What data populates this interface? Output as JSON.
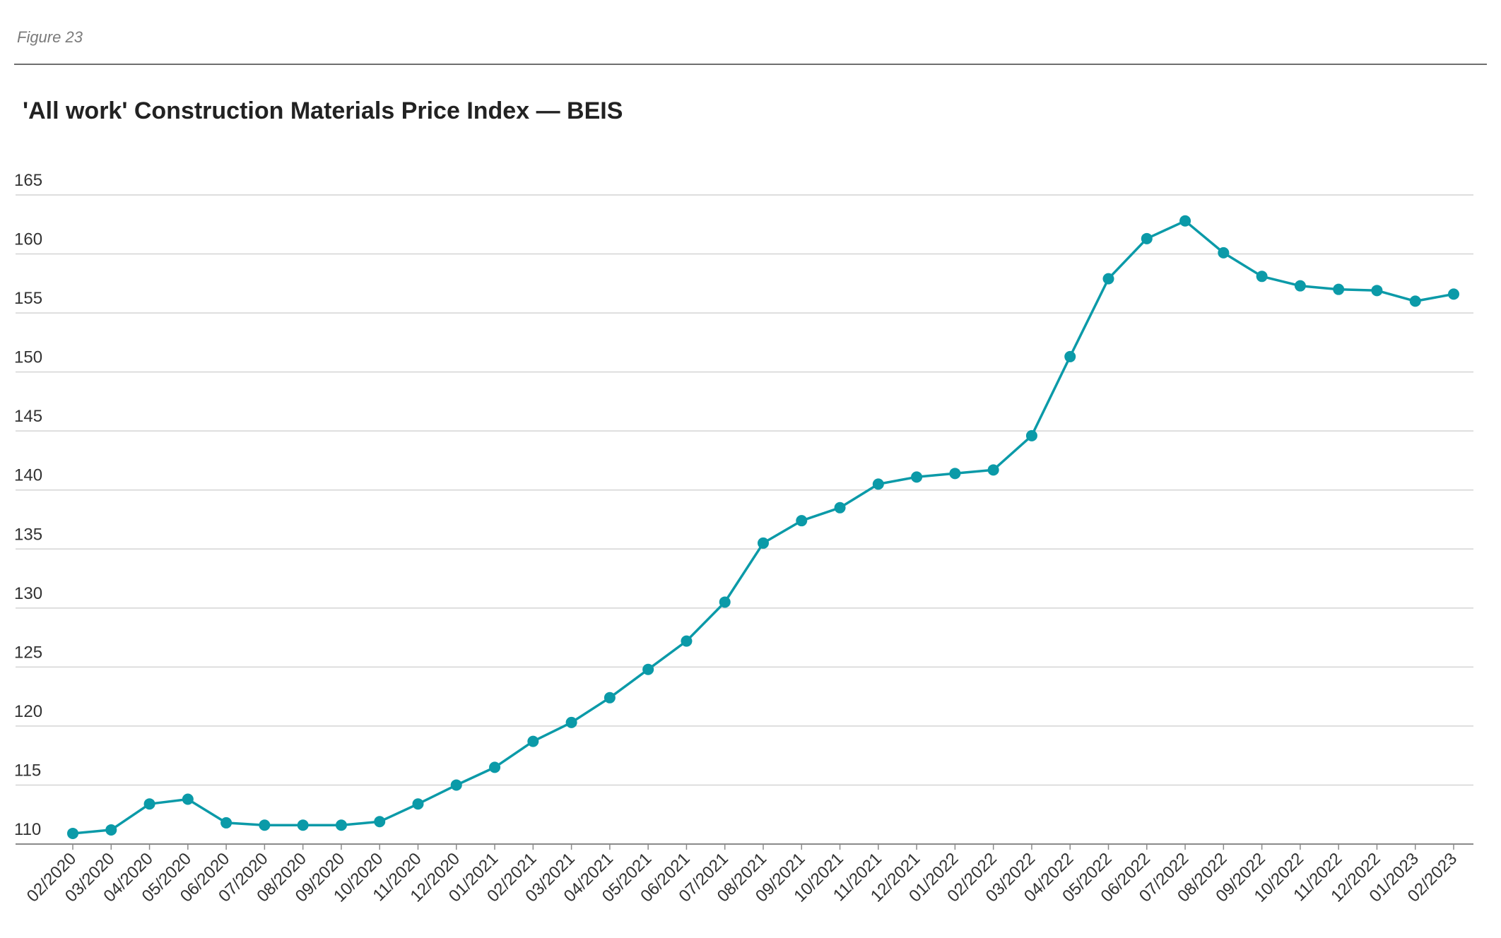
{
  "figure_label": "Figure 23",
  "chart_data": {
    "type": "line",
    "title": "'All work' Construction Materials Price Index — BEIS",
    "xlabel": "",
    "ylabel": "",
    "ylim": [
      110,
      165
    ],
    "yticks": [
      110,
      115,
      120,
      125,
      130,
      135,
      140,
      145,
      150,
      155,
      160,
      165
    ],
    "grid": true,
    "legend": "none",
    "color": "#0b9aa8",
    "categories": [
      "02/2020",
      "03/2020",
      "04/2020",
      "05/2020",
      "06/2020",
      "07/2020",
      "08/2020",
      "09/2020",
      "10/2020",
      "11/2020",
      "12/2020",
      "01/2021",
      "02/2021",
      "03/2021",
      "04/2021",
      "05/2021",
      "06/2021",
      "07/2021",
      "08/2021",
      "09/2021",
      "10/2021",
      "11/2021",
      "12/2021",
      "01/2022",
      "02/2022",
      "03/2022",
      "04/2022",
      "05/2022",
      "06/2022",
      "07/2022",
      "08/2022",
      "09/2022",
      "10/2022",
      "11/2022",
      "12/2022",
      "01/2023",
      "02/2023"
    ],
    "series": [
      {
        "values": [
          110.9,
          111.2,
          113.4,
          113.8,
          111.8,
          111.6,
          111.6,
          111.6,
          111.9,
          113.4,
          115.0,
          116.5,
          118.7,
          120.3,
          122.4,
          124.8,
          127.2,
          130.5,
          135.5,
          137.4,
          138.5,
          140.5,
          141.1,
          141.4,
          141.7,
          144.6,
          151.3,
          157.9,
          161.3,
          162.8,
          160.1,
          158.1,
          157.3,
          157.0,
          156.9,
          156.0,
          156.6
        ]
      }
    ]
  }
}
